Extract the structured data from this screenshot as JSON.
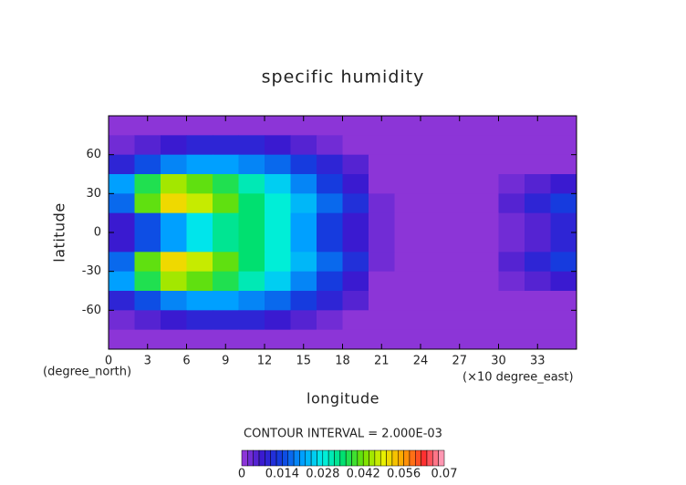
{
  "chart_data": {
    "type": "contour",
    "title": "specific humidity",
    "x_label": "longitude",
    "y_label": "latitude",
    "x_unit": "(×10 degree_east)",
    "y_unit": "(degree_north)",
    "annotation": "CONTOUR INTERVAL = 2.000E-03",
    "xlim": [
      0,
      36
    ],
    "ylim": [
      -90,
      90
    ],
    "xticks": [
      0,
      3,
      6,
      9,
      12,
      15,
      18,
      21,
      24,
      27,
      30,
      33
    ],
    "yticks": [
      -60,
      -30,
      0,
      30,
      60
    ],
    "x": [
      1,
      3,
      5,
      7,
      9,
      11,
      13,
      15,
      17,
      19,
      21,
      23,
      25,
      27,
      29,
      31,
      33,
      35
    ],
    "y": [
      82.5,
      67.5,
      52.5,
      37.5,
      22.5,
      7.5,
      -7.5,
      -22.5,
      -37.5,
      -52.5,
      -67.5,
      -82.5
    ],
    "z": [
      [
        0,
        0,
        0,
        0,
        0,
        0,
        0,
        0,
        0,
        0,
        0,
        0,
        0,
        0,
        0,
        0,
        0,
        0
      ],
      [
        0.002,
        0.004,
        0.006,
        0.008,
        0.008,
        0.008,
        0.006,
        0.004,
        0.002,
        0.001,
        0,
        0,
        0,
        0,
        0,
        0,
        0,
        0
      ],
      [
        0.008,
        0.014,
        0.018,
        0.02,
        0.02,
        0.018,
        0.016,
        0.012,
        0.008,
        0.004,
        0.001,
        0,
        0,
        0,
        0,
        0,
        0,
        0
      ],
      [
        0.02,
        0.036,
        0.044,
        0.04,
        0.036,
        0.03,
        0.024,
        0.018,
        0.012,
        0.006,
        0.001,
        0,
        0,
        0,
        0,
        0.002,
        0.004,
        0.006
      ],
      [
        0.016,
        0.04,
        0.05,
        0.046,
        0.04,
        0.034,
        0.028,
        0.022,
        0.016,
        0.01,
        0.003,
        0,
        0,
        0,
        0.001,
        0.004,
        0.008,
        0.012
      ],
      [
        0.006,
        0.014,
        0.02,
        0.026,
        0.032,
        0.034,
        0.028,
        0.02,
        0.012,
        0.006,
        0.002,
        0,
        0,
        0,
        0,
        0.002,
        0.004,
        0.008
      ],
      [
        0.006,
        0.014,
        0.02,
        0.026,
        0.032,
        0.034,
        0.028,
        0.02,
        0.012,
        0.006,
        0.002,
        0,
        0,
        0,
        0,
        0.002,
        0.004,
        0.008
      ],
      [
        0.016,
        0.04,
        0.05,
        0.046,
        0.04,
        0.034,
        0.028,
        0.022,
        0.016,
        0.01,
        0.003,
        0,
        0,
        0,
        0.001,
        0.004,
        0.008,
        0.012
      ],
      [
        0.02,
        0.036,
        0.044,
        0.04,
        0.036,
        0.03,
        0.024,
        0.018,
        0.012,
        0.006,
        0.001,
        0,
        0,
        0,
        0,
        0.002,
        0.004,
        0.006
      ],
      [
        0.008,
        0.014,
        0.018,
        0.02,
        0.02,
        0.018,
        0.016,
        0.012,
        0.008,
        0.004,
        0.001,
        0,
        0,
        0,
        0,
        0,
        0,
        0
      ],
      [
        0.002,
        0.004,
        0.006,
        0.008,
        0.008,
        0.008,
        0.006,
        0.004,
        0.002,
        0.001,
        0,
        0,
        0,
        0,
        0,
        0,
        0,
        0
      ],
      [
        0,
        0,
        0,
        0,
        0,
        0,
        0,
        0,
        0,
        0,
        0,
        0,
        0,
        0,
        0,
        0,
        0,
        0
      ]
    ],
    "levels": [
      0,
      0.002,
      0.004,
      0.006,
      0.008,
      0.01,
      0.012,
      0.014,
      0.016,
      0.018,
      0.02,
      0.022,
      0.024,
      0.026,
      0.028,
      0.03,
      0.032,
      0.034,
      0.036,
      0.038,
      0.04,
      0.042,
      0.044,
      0.046,
      0.048,
      0.05,
      0.052,
      0.054,
      0.056,
      0.058,
      0.06,
      0.062,
      0.064,
      0.066,
      0.068,
      0.07
    ],
    "colorbar_ticks": [
      0,
      0.014,
      0.028,
      0.042,
      0.056,
      0.07
    ],
    "color_stops": [
      "#9a3ad8",
      "#3a1ad0",
      "#1040e0",
      "#00a0ff",
      "#00f0e8",
      "#00e070",
      "#70e000",
      "#e8f000",
      "#ffa000",
      "#ff3030",
      "#ffa8c8"
    ]
  }
}
